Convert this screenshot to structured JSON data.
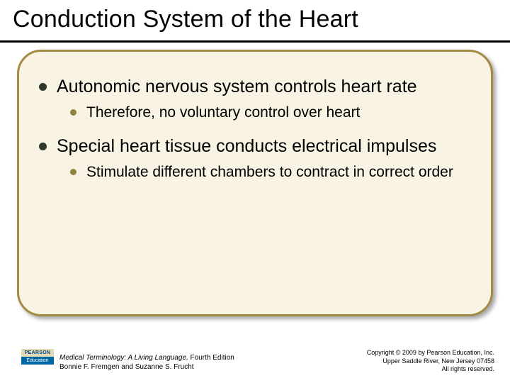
{
  "title": "Conduction System of the Heart",
  "bullets": {
    "main1": "Autonomic nervous system controls heart rate",
    "sub1": "Therefore, no voluntary control over heart",
    "main2": "Special heart tissue conducts electrical impulses",
    "sub2": "Stimulate different chambers to contract in correct order"
  },
  "logo": {
    "top": "PEARSON",
    "bottom": "Education"
  },
  "book": {
    "title": "Medical Terminology: A Living Language,",
    "edition": " Fourth Edition",
    "authors": "Bonnie F. Fremgen and Suzanne S. Frucht"
  },
  "copyright": {
    "line1": "Copyright © 2009 by Pearson Education, Inc.",
    "line2": "Upper Saddle River, New Jersey 07458",
    "line3": "All rights reserved."
  },
  "colors": {
    "title_underline": "#000000",
    "box_border": "#a38a45",
    "box_fill": "#f8f3e2",
    "main_bullet": "#30382d",
    "sub_bullet": "#8f843f",
    "logo_top_bg": "#e6d9b6",
    "logo_bot_bg": "#0066a4"
  }
}
